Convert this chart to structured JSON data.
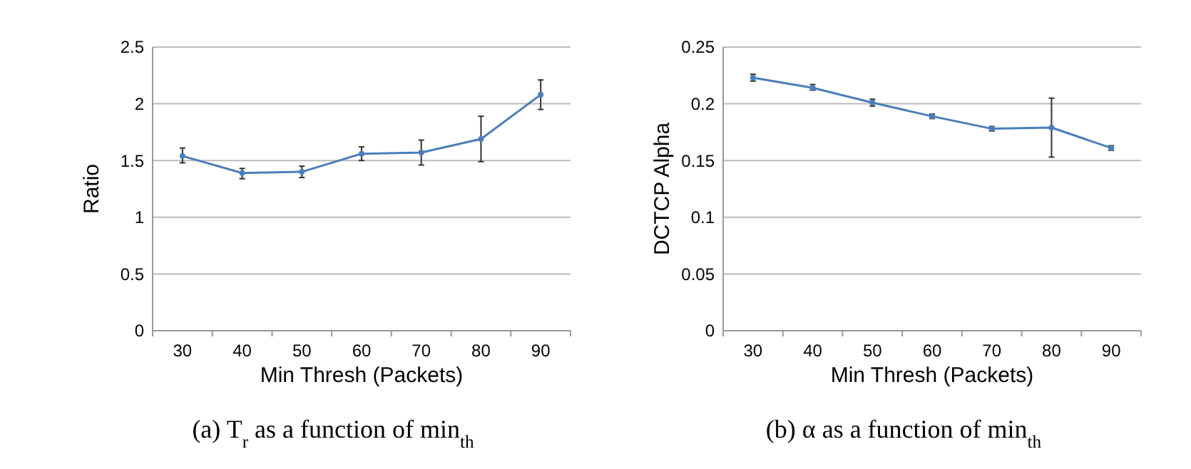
{
  "chart_data": [
    {
      "type": "line",
      "categories": [
        "30",
        "40",
        "50",
        "60",
        "70",
        "80",
        "90"
      ],
      "ylabel": "Ratio",
      "xlabel": "Min Thresh (Packets)",
      "ylim": [
        0,
        2.5
      ],
      "yticks": [
        0,
        0.5,
        1,
        1.5,
        2,
        2.5
      ],
      "grid": "y",
      "marker": "circle",
      "annotations": [
        "(a) T$_{r}$ as a function of min$_{th}$"
      ],
      "series": [
        {
          "color": "#4a7ebb",
          "values": [
            1.54,
            1.39,
            1.4,
            1.56,
            1.57,
            1.69,
            2.08
          ],
          "errors": [
            [
              1.48,
              1.61
            ],
            [
              1.34,
              1.43
            ],
            [
              1.35,
              1.45
            ],
            [
              1.5,
              1.62
            ],
            [
              1.46,
              1.68
            ],
            [
              1.49,
              1.89
            ],
            [
              1.95,
              2.21
            ]
          ]
        }
      ]
    },
    {
      "type": "line",
      "categories": [
        "30",
        "40",
        "50",
        "60",
        "70",
        "80",
        "90"
      ],
      "ylabel": "DCTCP Alpha",
      "xlabel": "Min Thresh (Packets)",
      "ylim": [
        0,
        0.25
      ],
      "yticks": [
        0,
        0.05,
        0.1,
        0.15,
        0.2,
        0.25
      ],
      "grid": "y",
      "marker": "circle",
      "annotations": [
        "(b) α as a function of min$_{th}$"
      ],
      "series": [
        {
          "color": "#4a7ebb",
          "values": [
            0.223,
            0.214,
            0.201,
            0.189,
            0.178,
            0.179,
            0.161
          ],
          "errors": [
            [
              0.22,
              0.226
            ],
            [
              0.212,
              0.217
            ],
            [
              0.198,
              0.204
            ],
            [
              0.187,
              0.191
            ],
            [
              0.176,
              0.18
            ],
            [
              0.153,
              0.205
            ],
            [
              0.159,
              0.163
            ]
          ]
        }
      ]
    }
  ]
}
